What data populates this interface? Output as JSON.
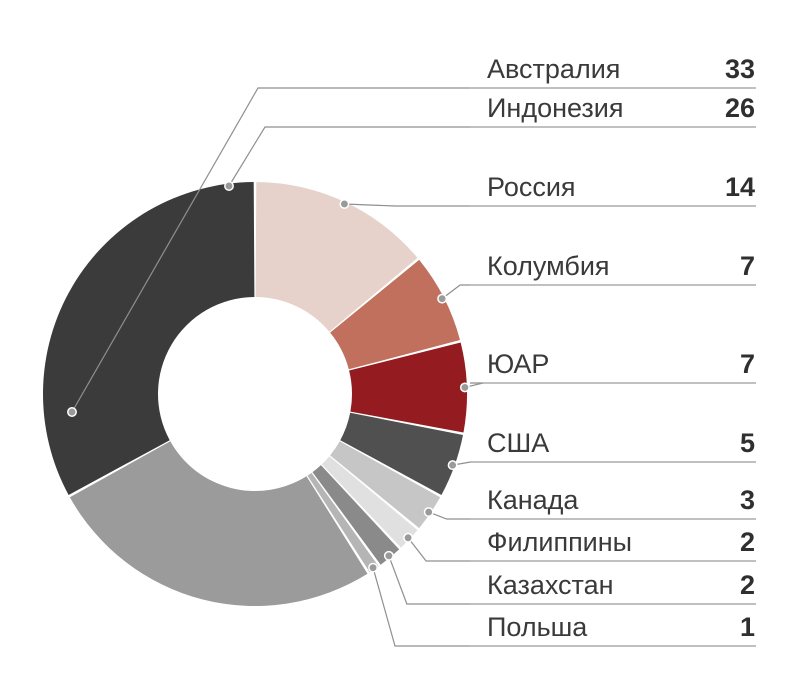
{
  "chart_data": {
    "type": "pie",
    "variant": "donut",
    "start_from": "top",
    "direction": "clockwise",
    "order": [
      "Россия",
      "Колумбия",
      "ЮАР",
      "США",
      "Канада",
      "Филиппины",
      "Казахстан",
      "Польша",
      "Индонезия",
      "Австралия"
    ],
    "legend_placement": "right",
    "grid": false,
    "slices": [
      {
        "label": "Австралия",
        "value": 33,
        "color": "#3b3b3b"
      },
      {
        "label": "Индонезия",
        "value": 26,
        "color": "#9b9b9b"
      },
      {
        "label": "Россия",
        "value": 14,
        "color": "#e6d2cb"
      },
      {
        "label": "Колумбия",
        "value": 7,
        "color": "#c0705d"
      },
      {
        "label": "ЮАР",
        "value": 7,
        "color": "#941c21"
      },
      {
        "label": "США",
        "value": 5,
        "color": "#505050"
      },
      {
        "label": "Канада",
        "value": 3,
        "color": "#c6c6c6"
      },
      {
        "label": "Филиппины",
        "value": 2,
        "color": "#e0e0e0"
      },
      {
        "label": "Казахстан",
        "value": 2,
        "color": "#8a8a8a"
      },
      {
        "label": "Польша",
        "value": 1,
        "color": "#b5b5b5"
      }
    ]
  }
}
